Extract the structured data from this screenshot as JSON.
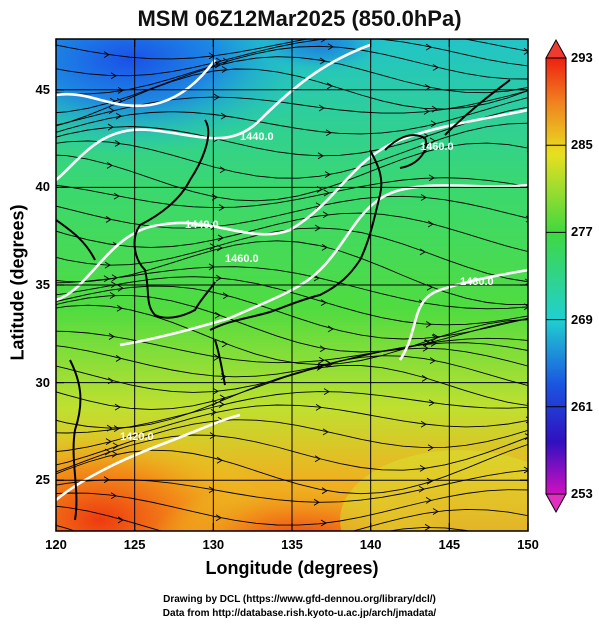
{
  "title": "MSM 06Z12Mar2025 (850.0hPa)",
  "axes": {
    "xlabel": "Longitude (degrees)",
    "ylabel": "Latitude  (degrees)",
    "xlim": [
      120,
      150
    ],
    "ylim": [
      22.4,
      47.6
    ],
    "xticks": [
      "120",
      "125",
      "130",
      "135",
      "140",
      "145",
      "150"
    ],
    "yticks": [
      "25",
      "30",
      "35",
      "40",
      "45"
    ]
  },
  "colorbar": {
    "min": 253,
    "max": 293,
    "ticks": [
      "293",
      "285",
      "277",
      "269",
      "261",
      "253"
    ]
  },
  "contour_labels": [
    "1440.0",
    "1440.0",
    "1460.0",
    "1460.0",
    "1420.0",
    "1480.0"
  ],
  "credits": {
    "line1": "Drawing by DCL (https://www.gfd-dennou.org/library/dcl/)",
    "line2": "Data from http://database.rish.kyoto-u.ac.jp/arch/jmadata/"
  },
  "colors": {
    "cold": "#1a55e0",
    "cool": "#20d0c0",
    "mid": "#40d840",
    "warm": "#e8e020",
    "hot": "#ee3a10"
  }
}
